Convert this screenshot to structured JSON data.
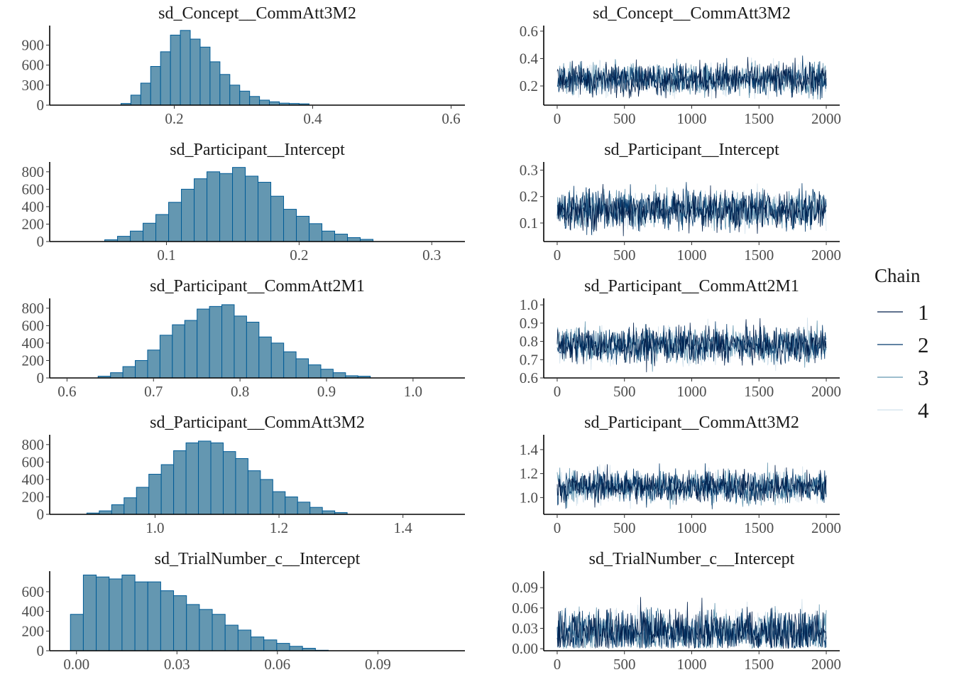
{
  "chart_data": {
    "type": "mcmc_diagnostics",
    "description": "Posterior histograms (left) and MCMC trace plots (right) for 5 parameters, 4 chains, 2000 iterations",
    "legend": {
      "title": "Chain",
      "placement": "right",
      "entries": [
        {
          "label": "1",
          "color": "#011f4b"
        },
        {
          "label": "2",
          "color": "#03396c"
        },
        {
          "label": "3",
          "color": "#6497b1"
        },
        {
          "label": "4",
          "color": "#d1e1ec"
        }
      ]
    },
    "histogram_style": {
      "fill": "#6497b1",
      "stroke": "#005b96"
    },
    "histograms": [
      {
        "title": "sd_Concept__CommAtt3M2",
        "xlim": [
          0.02,
          0.62
        ],
        "xticks": [
          "0.2",
          "0.4",
          "0.6"
        ],
        "xtick_values": [
          0.2,
          0.4,
          0.6
        ],
        "ylim": [
          0,
          1150
        ],
        "yticks": [
          "0",
          "300",
          "600",
          "900"
        ],
        "ytick_values": [
          0,
          300,
          600,
          900
        ],
        "bin_start": 0.123,
        "bin_width": 0.0143,
        "counts": [
          25,
          150,
          330,
          580,
          800,
          1050,
          1120,
          990,
          870,
          650,
          460,
          300,
          210,
          130,
          75,
          50,
          30,
          25,
          20
        ]
      },
      {
        "title": "sd_Participant__Intercept",
        "xlim": [
          0.012,
          0.325
        ],
        "xticks": [
          "0.1",
          "0.2",
          "0.3"
        ],
        "xtick_values": [
          0.1,
          0.2,
          0.3
        ],
        "ylim": [
          0,
          880
        ],
        "yticks": [
          "0",
          "200",
          "400",
          "600",
          "800"
        ],
        "ytick_values": [
          0,
          200,
          400,
          600,
          800
        ],
        "bin_start": 0.0535,
        "bin_width": 0.00963,
        "counts": [
          20,
          60,
          120,
          210,
          310,
          450,
          600,
          720,
          800,
          780,
          850,
          750,
          680,
          520,
          370,
          290,
          205,
          120,
          85,
          45,
          25
        ]
      },
      {
        "title": "sd_Participant__CommAtt2M1",
        "xlim": [
          0.58,
          1.06
        ],
        "xticks": [
          "0.6",
          "0.7",
          "0.8",
          "0.9",
          "1.0"
        ],
        "xtick_values": [
          0.6,
          0.7,
          0.8,
          0.9,
          1.0
        ],
        "ylim": [
          0,
          880
        ],
        "yticks": [
          "0",
          "200",
          "400",
          "600",
          "800"
        ],
        "ytick_values": [
          0,
          200,
          400,
          600,
          800
        ],
        "bin_start": 0.636,
        "bin_width": 0.0143,
        "counts": [
          20,
          60,
          130,
          200,
          320,
          490,
          610,
          660,
          790,
          820,
          840,
          710,
          640,
          470,
          400,
          300,
          220,
          150,
          100,
          60,
          25,
          20
        ]
      },
      {
        "title": "sd_Participant__CommAtt3M2",
        "xlim": [
          0.83,
          1.5
        ],
        "xticks": [
          "1.0",
          "1.2",
          "1.4"
        ],
        "xtick_values": [
          1.0,
          1.2,
          1.4
        ],
        "ylim": [
          0,
          880
        ],
        "yticks": [
          "0",
          "200",
          "400",
          "600",
          "800"
        ],
        "ytick_values": [
          0,
          200,
          400,
          600,
          800
        ],
        "bin_start": 0.89,
        "bin_width": 0.02,
        "counts": [
          15,
          40,
          110,
          190,
          310,
          460,
          570,
          730,
          820,
          840,
          820,
          720,
          640,
          500,
          400,
          260,
          200,
          140,
          80,
          40,
          20
        ]
      },
      {
        "title": "sd_TrialNumber_c__Intercept",
        "xlim": [
          -0.008,
          0.116
        ],
        "xticks": [
          "0.00",
          "0.03",
          "0.06",
          "0.09"
        ],
        "xtick_values": [
          0.0,
          0.03,
          0.06,
          0.09
        ],
        "ylim": [
          0,
          780
        ],
        "yticks": [
          "0",
          "200",
          "400",
          "600"
        ],
        "ytick_values": [
          0,
          200,
          400,
          600
        ],
        "bin_start": -0.0018,
        "bin_width": 0.00385,
        "counts": [
          370,
          770,
          750,
          730,
          770,
          700,
          700,
          610,
          560,
          470,
          420,
          370,
          260,
          210,
          140,
          110,
          75,
          45,
          25,
          5
        ]
      }
    ],
    "traces": [
      {
        "title": "sd_Concept__CommAtt3M2",
        "xlim": [
          -100,
          2100
        ],
        "xticks": [
          "0",
          "500",
          "1000",
          "1500",
          "2000"
        ],
        "xtick_values": [
          0,
          500,
          1000,
          1500,
          2000
        ],
        "ylim": [
          0.06,
          0.62
        ],
        "yticks": [
          "0.2",
          "0.4",
          "0.6"
        ],
        "ytick_values": [
          0.2,
          0.4,
          0.6
        ],
        "center": 0.25,
        "spread": 0.06,
        "floor": 0.1,
        "ceiling": 0.58
      },
      {
        "title": "sd_Participant__Intercept",
        "xlim": [
          -100,
          2100
        ],
        "xticks": [
          "0",
          "500",
          "1000",
          "1500",
          "2000"
        ],
        "xtick_values": [
          0,
          500,
          1000,
          1500,
          2000
        ],
        "ylim": [
          0.03,
          0.32
        ],
        "yticks": [
          "0.1",
          "0.2",
          "0.3"
        ],
        "ytick_values": [
          0.1,
          0.2,
          0.3
        ],
        "center": 0.15,
        "spread": 0.037,
        "floor": 0.05,
        "ceiling": 0.31
      },
      {
        "title": "sd_Participant__CommAtt2M1",
        "xlim": [
          -100,
          2100
        ],
        "xticks": [
          "0",
          "500",
          "1000",
          "1500",
          "2000"
        ],
        "xtick_values": [
          0,
          500,
          1000,
          1500,
          2000
        ],
        "ylim": [
          0.6,
          1.02
        ],
        "yticks": [
          "0.6",
          "0.7",
          "0.8",
          "0.9",
          "1.0"
        ],
        "ytick_values": [
          0.6,
          0.7,
          0.8,
          0.9,
          1.0
        ],
        "center": 0.78,
        "spread": 0.05,
        "floor": 0.63,
        "ceiling": 0.99
      },
      {
        "title": "sd_Participant__CommAtt3M2",
        "xlim": [
          -100,
          2100
        ],
        "xticks": [
          "0",
          "500",
          "1000",
          "1500",
          "2000"
        ],
        "xtick_values": [
          0,
          500,
          1000,
          1500,
          2000
        ],
        "ylim": [
          0.86,
          1.5
        ],
        "yticks": [
          "1.0",
          "1.2",
          "1.4"
        ],
        "ytick_values": [
          1.0,
          1.2,
          1.4
        ],
        "center": 1.09,
        "spread": 0.07,
        "floor": 0.9,
        "ceiling": 1.45
      },
      {
        "title": "sd_TrialNumber_c__Intercept",
        "xlim": [
          -100,
          2100
        ],
        "xticks": [
          "0",
          "500",
          "1000",
          "1500",
          "2000"
        ],
        "xtick_values": [
          0,
          500,
          1000,
          1500,
          2000
        ],
        "ylim": [
          -0.003,
          0.11
        ],
        "yticks": [
          "0.00",
          "0.03",
          "0.06",
          "0.09"
        ],
        "ytick_values": [
          0.0,
          0.03,
          0.06,
          0.09
        ],
        "center": 0.025,
        "spread": 0.017,
        "floor": 0.0,
        "ceiling": 0.105
      }
    ],
    "iterations": 2000,
    "chains": 4
  }
}
